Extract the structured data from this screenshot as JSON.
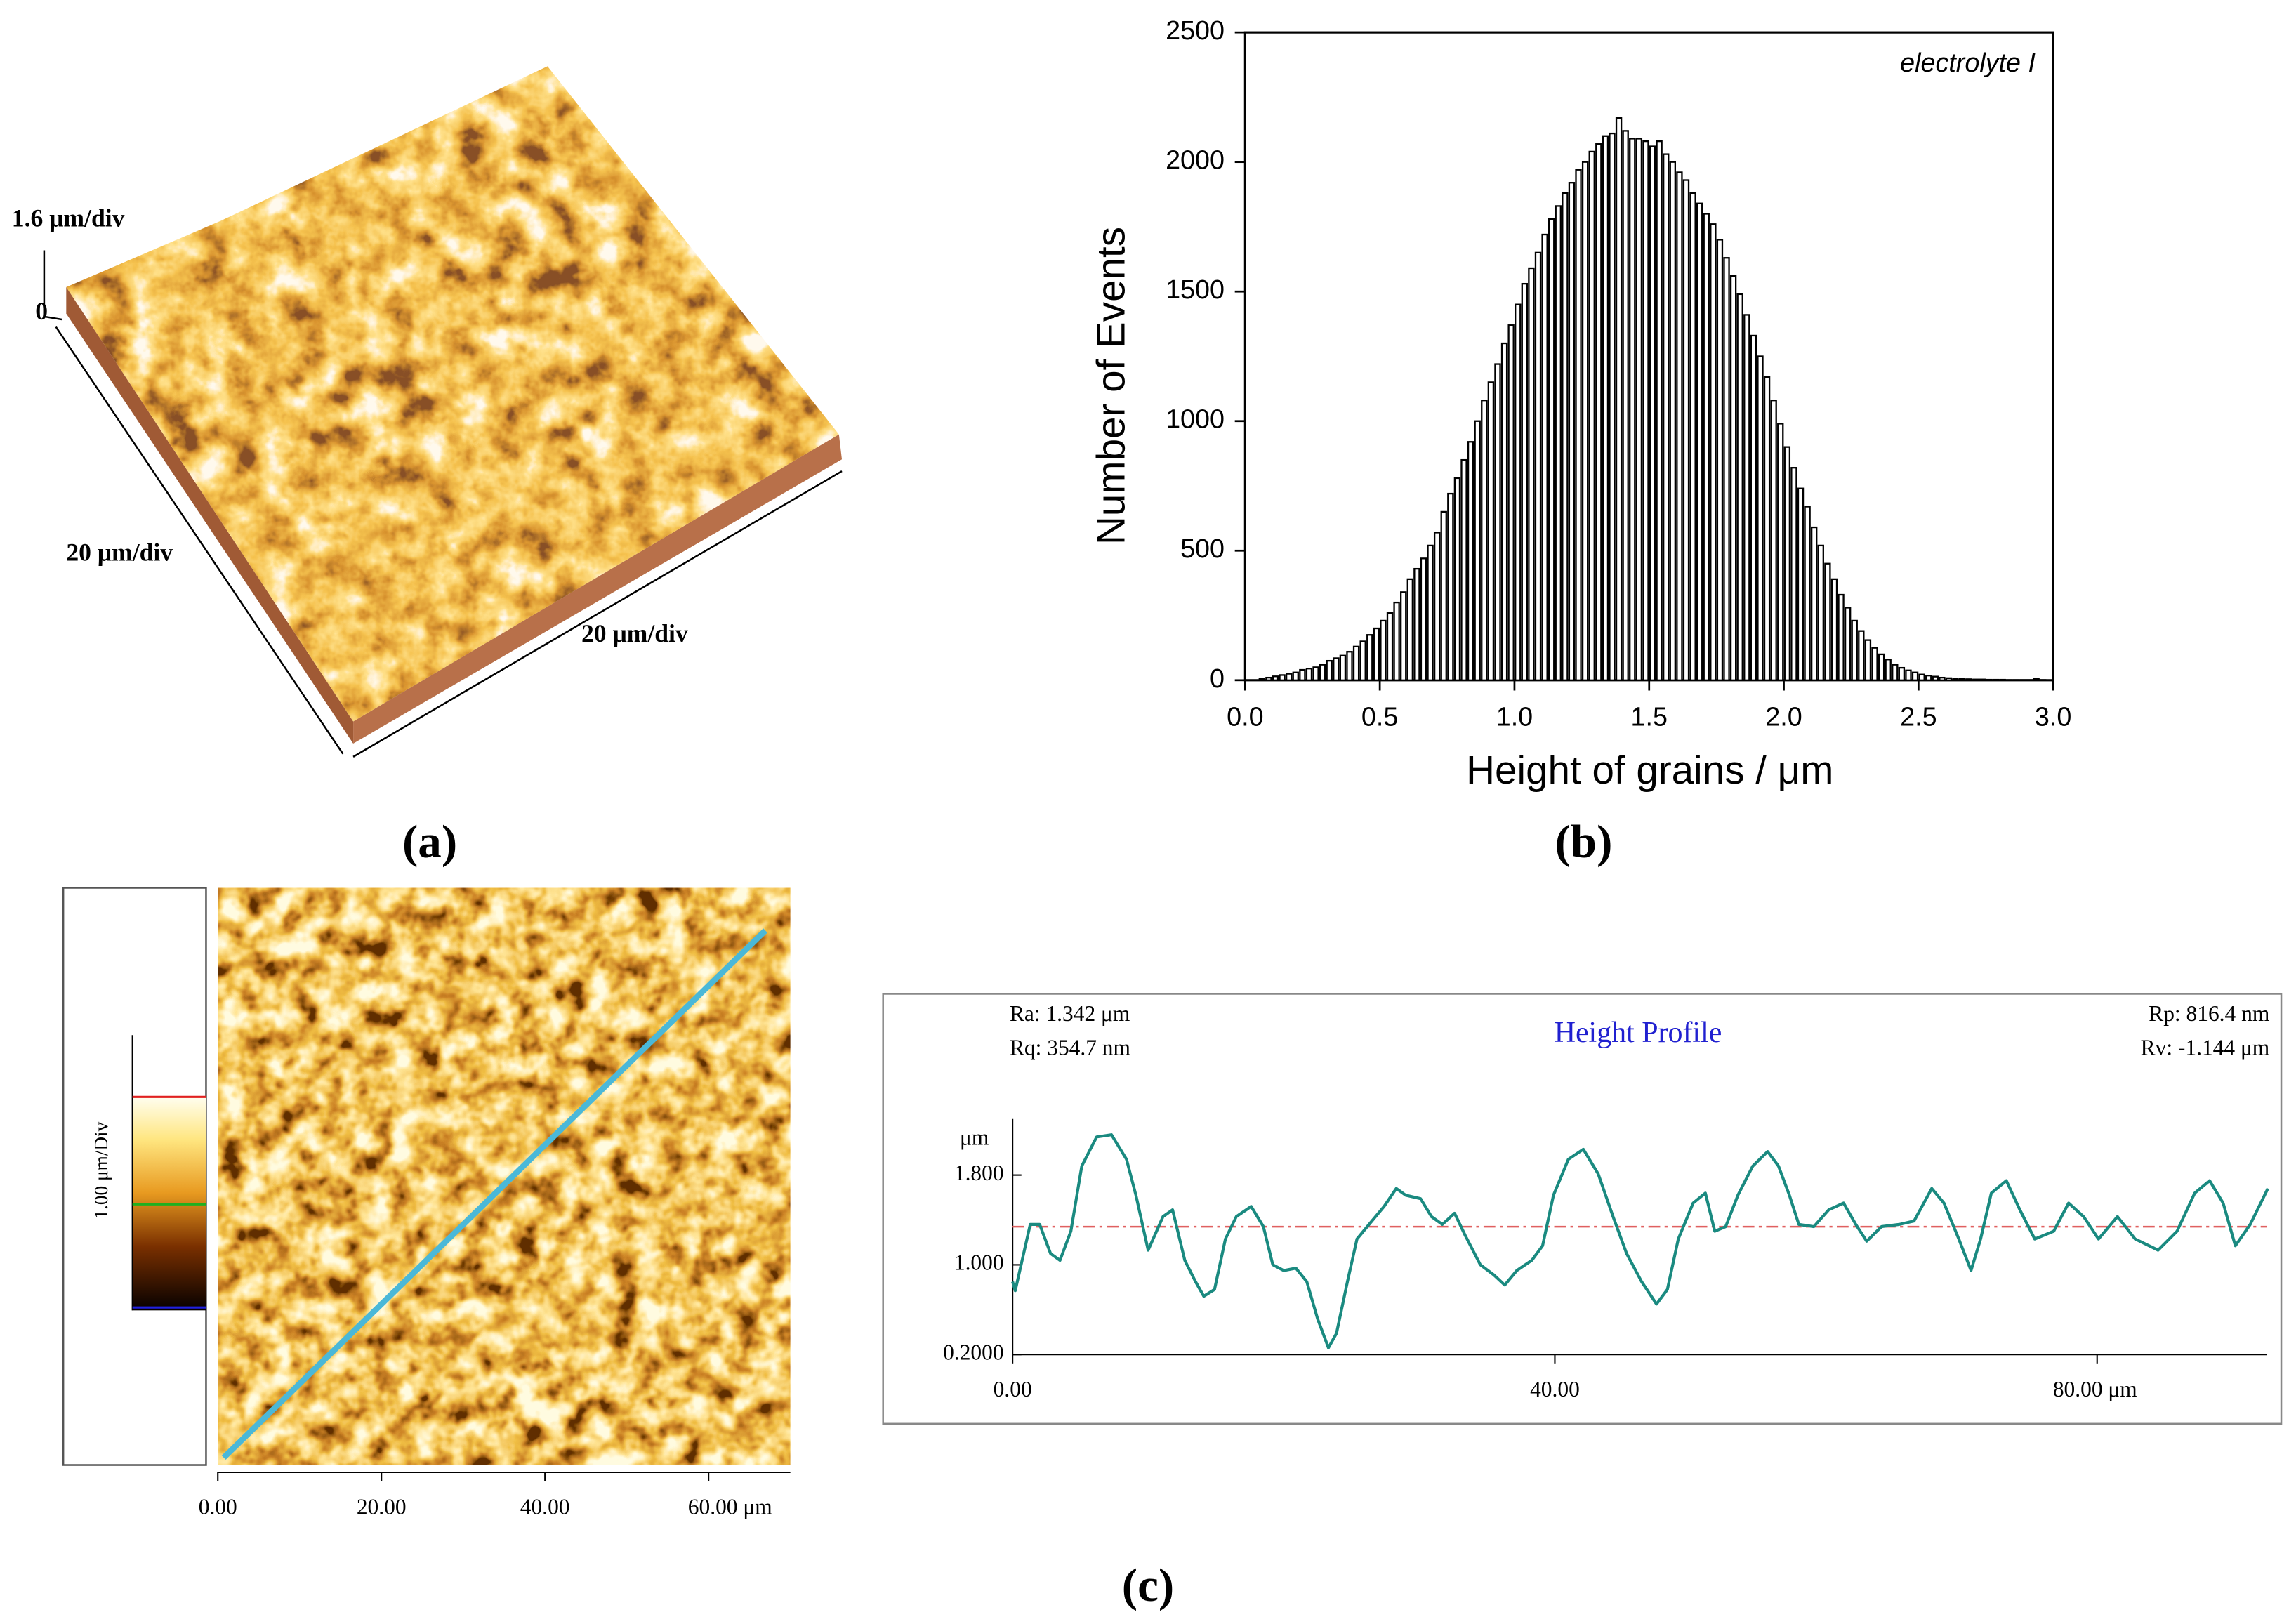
{
  "panel_labels": [
    "(a)",
    "(b)",
    "(c)"
  ],
  "afm_3d": {
    "z_label": "1.6 μm/div",
    "zticks": [
      0
    ],
    "x_label": "20 μm/div",
    "y_label": "20 μm/div"
  },
  "afm_2d": {
    "colorbar_label": "1.00 μm/Div",
    "xlim": [
      0,
      70
    ],
    "xticks": [
      {
        "value": 0,
        "label": "0.00"
      },
      {
        "value": 20,
        "label": "20.00"
      },
      {
        "value": 40,
        "label": "40.00"
      },
      {
        "value": 60,
        "label": "60.00 μm"
      }
    ]
  },
  "chart_data": [
    {
      "type": "histogram",
      "annotation": "electrolyte I",
      "x_label": "Height of grains / μm",
      "y_label": "Number of Events",
      "bins": [
        0,
        0.025,
        0.05,
        0.075,
        0.1,
        0.125,
        0.15,
        0.175,
        0.2,
        0.225,
        0.25,
        0.275,
        0.3,
        0.325,
        0.35,
        0.375,
        0.4,
        0.425,
        0.45,
        0.475,
        0.5,
        0.525,
        0.55,
        0.575,
        0.6,
        0.625,
        0.65,
        0.675,
        0.7,
        0.725,
        0.75,
        0.775,
        0.8,
        0.825,
        0.85,
        0.875,
        0.9,
        0.925,
        0.95,
        0.975,
        1,
        1.025,
        1.05,
        1.075,
        1.1,
        1.125,
        1.15,
        1.175,
        1.2,
        1.225,
        1.25,
        1.275,
        1.3,
        1.325,
        1.35,
        1.375,
        1.4,
        1.425,
        1.45,
        1.475,
        1.5,
        1.525,
        1.55,
        1.575,
        1.6,
        1.625,
        1.65,
        1.675,
        1.7,
        1.725,
        1.75,
        1.775,
        1.8,
        1.825,
        1.85,
        1.875,
        1.9,
        1.925,
        1.95,
        1.975,
        2,
        2.025,
        2.05,
        2.075,
        2.1,
        2.125,
        2.15,
        2.175,
        2.2,
        2.225,
        2.25,
        2.275,
        2.3,
        2.325,
        2.35,
        2.375,
        2.4,
        2.425,
        2.45,
        2.475,
        2.5,
        2.525,
        2.55,
        2.575,
        2.6,
        2.625,
        2.65,
        2.675,
        2.7,
        2.725,
        2.75,
        2.775,
        2.8,
        2.825,
        2.85,
        2.875,
        2.9,
        2.925,
        2.95,
        2.975,
        3
      ],
      "values": [
        0,
        0,
        5,
        10,
        15,
        20,
        25,
        30,
        40,
        45,
        50,
        60,
        75,
        85,
        95,
        110,
        130,
        150,
        175,
        200,
        230,
        260,
        300,
        340,
        390,
        430,
        470,
        520,
        570,
        650,
        720,
        780,
        850,
        920,
        1000,
        1080,
        1150,
        1220,
        1300,
        1370,
        1450,
        1530,
        1590,
        1650,
        1720,
        1780,
        1830,
        1880,
        1920,
        1970,
        2000,
        2040,
        2070,
        2100,
        2110,
        2170,
        2120,
        2090,
        2090,
        2080,
        2060,
        2080,
        2030,
        2000,
        1960,
        1930,
        1880,
        1840,
        1800,
        1760,
        1700,
        1630,
        1560,
        1490,
        1410,
        1330,
        1250,
        1170,
        1080,
        990,
        900,
        820,
        740,
        670,
        590,
        520,
        450,
        390,
        330,
        280,
        230,
        190,
        155,
        125,
        100,
        80,
        60,
        48,
        38,
        30,
        22,
        18,
        14,
        10,
        8,
        6,
        5,
        4,
        3,
        3,
        2,
        2,
        2,
        1,
        1,
        1,
        1,
        5,
        1,
        0
      ],
      "color": "#ffffff",
      "edge_color": "#000000",
      "xlim": [
        0,
        3
      ],
      "xticks": [
        {
          "value": 0,
          "label": "0.0"
        },
        0.5,
        {
          "value": 1,
          "label": "1.0"
        },
        1.5,
        {
          "value": 2,
          "label": "2.0"
        },
        2.5,
        {
          "value": 3,
          "label": "3.0"
        }
      ],
      "ylim": [
        0,
        2500
      ],
      "yticks": [
        0,
        500,
        1000,
        1500,
        2000,
        2500
      ]
    },
    {
      "type": "line",
      "title": "Height Profile",
      "stats": [
        "Ra: 1.342 μm",
        "Rq: 354.7 nm",
        "Rp: 816.4 nm",
        "Rv: -1.144 μm"
      ],
      "y_label": "μm",
      "x": [
        0,
        0.2,
        1.3,
        2,
        2.8,
        3.5,
        4.3,
        5.1,
        6.2,
        7.3,
        8.4,
        9.1,
        10,
        11.1,
        11.8,
        12.7,
        13.5,
        14.1,
        14.9,
        15.7,
        16.5,
        17.6,
        18.5,
        19.2,
        20,
        20.9,
        21.7,
        22.5,
        23.3,
        23.9,
        24.7,
        25.4,
        26.3,
        27.4,
        28.3,
        29,
        30.1,
        30.9,
        31.7,
        32.6,
        33.4,
        34.5,
        35.5,
        36.3,
        37.2,
        38.3,
        39.1,
        39.9,
        41,
        42.1,
        43.2,
        44.3,
        45.3,
        46.4,
        47.5,
        48.3,
        49.1,
        50.2,
        51.1,
        51.8,
        52.6,
        53.5,
        54.6,
        55.7,
        56.5,
        57.3,
        58,
        59.1,
        60.2,
        61.3,
        62.2,
        63,
        64.1,
        65.4,
        66.5,
        67.8,
        68.7,
        69.8,
        70.7,
        71.4,
        72.2,
        73.3,
        74.3,
        75.4,
        76.8,
        77.9,
        79,
        80.1,
        81.5,
        82.8,
        84.5,
        85.9,
        87.2,
        88.3,
        89.3,
        90.2,
        91.3,
        92.6
      ],
      "series": [
        {
          "name": "Height Profile",
          "color": "#1a8a80",
          "values": [
            0.85,
            0.77,
            1.36,
            1.36,
            1.1,
            1.04,
            1.3,
            1.88,
            2.14,
            2.16,
            1.94,
            1.62,
            1.13,
            1.43,
            1.49,
            1.04,
            0.85,
            0.72,
            0.78,
            1.23,
            1.43,
            1.52,
            1.34,
            1,
            0.95,
            0.97,
            0.85,
            0.52,
            0.26,
            0.39,
            0.85,
            1.23,
            1.36,
            1.52,
            1.68,
            1.62,
            1.59,
            1.43,
            1.36,
            1.46,
            1.26,
            1,
            0.91,
            0.82,
            0.95,
            1.04,
            1.17,
            1.62,
            1.94,
            2.03,
            1.81,
            1.43,
            1.1,
            0.85,
            0.65,
            0.78,
            1.23,
            1.55,
            1.64,
            1.3,
            1.34,
            1.62,
            1.88,
            2.01,
            1.88,
            1.62,
            1.36,
            1.34,
            1.49,
            1.55,
            1.36,
            1.21,
            1.34,
            1.36,
            1.39,
            1.68,
            1.55,
            1.23,
            0.95,
            1.23,
            1.64,
            1.75,
            1.49,
            1.23,
            1.3,
            1.55,
            1.43,
            1.23,
            1.43,
            1.23,
            1.13,
            1.3,
            1.64,
            1.75,
            1.55,
            1.17,
            1.36,
            1.68
          ]
        }
      ],
      "reference_line": {
        "value": 1.34,
        "color": "#e06060"
      },
      "xlim": [
        0,
        92.5
      ],
      "xticks": [
        {
          "value": 0,
          "label": "0.00"
        },
        {
          "value": 40,
          "label": "40.00"
        },
        {
          "value": 80,
          "label": "80.00 μm"
        }
      ],
      "ylim": [
        0.2,
        2.3
      ],
      "yticks": [
        {
          "value": 1.8,
          "label": "1.800"
        },
        {
          "value": 1,
          "label": "1.000"
        },
        {
          "value": 0.2,
          "label": "0.2000"
        }
      ]
    }
  ]
}
